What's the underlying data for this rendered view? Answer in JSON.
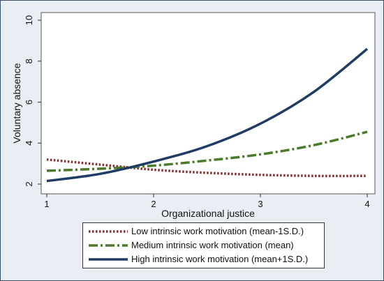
{
  "chart_data": {
    "type": "line",
    "xlabel": "Organizational justice",
    "ylabel": "Voluntary absence",
    "xlim": [
      1,
      4
    ],
    "ylim": [
      2,
      10
    ],
    "xticks": [
      1,
      2,
      3,
      4
    ],
    "yticks": [
      2,
      4,
      6,
      8,
      10
    ],
    "grid": false,
    "legend_position": "bottom",
    "series": [
      {
        "name": "Low intrinsic work motivation (mean-1S.D.)",
        "color": "#8b2e2e",
        "style": "dotted",
        "x": [
          1,
          1.5,
          2,
          2.5,
          3,
          3.5,
          4
        ],
        "y": [
          3.2,
          2.95,
          2.7,
          2.55,
          2.45,
          2.4,
          2.4
        ]
      },
      {
        "name": "Medium intrinsic work motivation (mean)",
        "color": "#4a7a2a",
        "style": "dash-dot",
        "x": [
          1,
          1.5,
          2,
          2.5,
          3,
          3.5,
          4
        ],
        "y": [
          2.65,
          2.75,
          2.9,
          3.15,
          3.45,
          3.9,
          4.55
        ]
      },
      {
        "name": "High intrinsic work motivation (mean+1S.D.)",
        "color": "#1f3c64",
        "style": "solid",
        "x": [
          1,
          1.5,
          2,
          2.5,
          3,
          3.5,
          4
        ],
        "y": [
          2.15,
          2.5,
          3.1,
          3.85,
          4.95,
          6.5,
          8.6
        ]
      }
    ]
  }
}
